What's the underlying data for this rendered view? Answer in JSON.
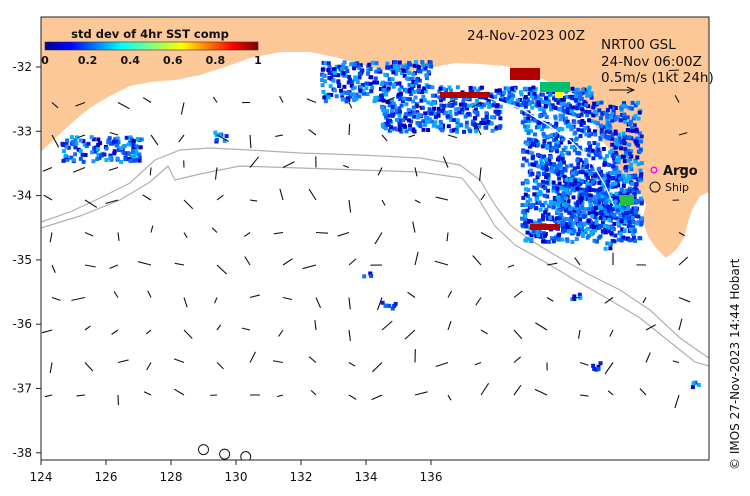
{
  "map": {
    "date_label": "24-Nov-2023 00Z",
    "product_title": "NRT00 GSL",
    "product_time": "24-Nov 06:00Z",
    "vector_scale_label": "0.5m/s (1kt 24h)",
    "colorbar": {
      "title": "std dev of 4hr SST comp",
      "ticks": [
        "0",
        "0.2",
        "0.4",
        "0.6",
        "0.8",
        "1"
      ]
    },
    "legend": {
      "argo_label": "Argo",
      "ship_label": "Ship"
    },
    "credit": "© IMOS 27-Nov-2023 14:44 Hobart",
    "x_ticks": [
      "124",
      "126",
      "128",
      "130",
      "132",
      "134",
      "136"
    ],
    "y_ticks": [
      "-32",
      "-33",
      "-34",
      "-35",
      "-36",
      "-37",
      "-38"
    ],
    "colors": {
      "land": "#fcc898",
      "ocean": "#ffffff",
      "bathymetry": "#b0b0b0",
      "argo_marker": "#ff00ff"
    },
    "ship_positions": [
      {
        "lon": 129.0,
        "lat": -37.95
      },
      {
        "lon": 129.65,
        "lat": -38.02
      },
      {
        "lon": 130.3,
        "lat": -38.06
      }
    ]
  }
}
